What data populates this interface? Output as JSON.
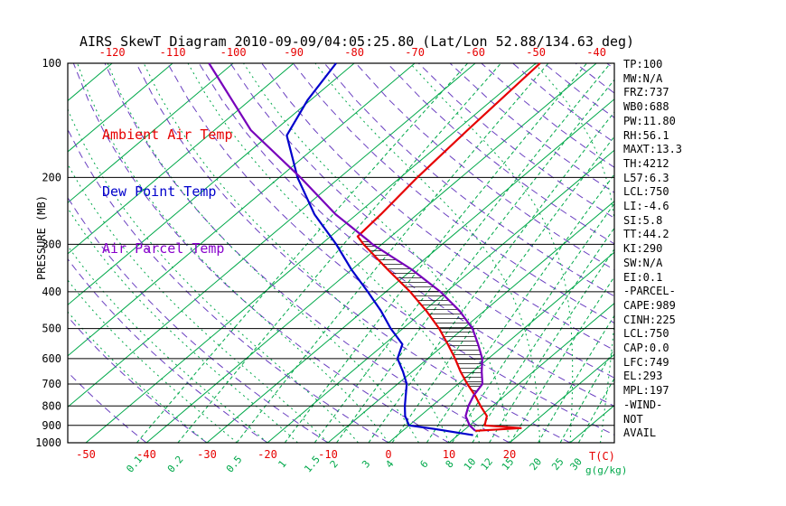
{
  "title": "AIRS SkewT Diagram 2010-09-09/04:05:25.80 (Lat/Lon 52.88/134.63 deg)",
  "legend": {
    "items": [
      {
        "label": "Ambient Air Temp",
        "color": "#e60000"
      },
      {
        "label": "Dew Point Temp",
        "color": "#0000cc"
      },
      {
        "label": "Air Parcel Temp",
        "color": "#8800cc"
      }
    ]
  },
  "stats_panel": {
    "lines": [
      "TP:100",
      "MW:N/A",
      "FRZ:737",
      "WB0:688",
      "PW:11.80",
      "RH:56.1",
      "MAXT:13.3",
      "TH:4212",
      "L57:6.3",
      "LCL:750",
      "LI:-4.6",
      "SI:5.8",
      "TT:44.2",
      "KI:290",
      "SW:N/A",
      "EI:0.1",
      "-PARCEL-",
      "CAPE:989",
      "CINH:225",
      "LCL:750",
      "CAP:0.0",
      "LFC:749",
      "EL:293",
      "MPL:197",
      "-WIND-",
      "NOT",
      "AVAIL"
    ]
  },
  "axes": {
    "pressure_label": "PRESSURE (MB)",
    "temp_unit_label": "T(C)",
    "mixing_unit_label": "g(g/kg)"
  },
  "chart_data": {
    "type": "line",
    "title": "AIRS SkewT Diagram 2010-09-09/04:05:25.80 (Lat/Lon 52.88/134.63 deg)",
    "projection": "skew-t log-p",
    "y_axis": {
      "label": "PRESSURE (MB)",
      "scale": "log",
      "range": [
        100,
        1000
      ],
      "ticks": [
        100,
        200,
        300,
        400,
        500,
        600,
        700,
        800,
        900,
        1000
      ]
    },
    "x_axis": {
      "label": "T(C)",
      "top_ticks": [
        -120,
        -110,
        -100,
        -90,
        -80,
        -70,
        -60,
        -50,
        -40
      ],
      "bottom_ticks": [
        -50,
        -40,
        -30,
        -20,
        -10,
        0,
        10,
        20
      ]
    },
    "background": {
      "isotherms": {
        "min": -120,
        "max": 40,
        "step": 10,
        "color": "#00a84a"
      },
      "dry_adiabats": {
        "min": -40,
        "max": 180,
        "step": 10,
        "color": "#6a3fc0"
      },
      "moist_adiabats": {
        "min": -30,
        "max": 40,
        "step": 5,
        "color": "#00a84a"
      },
      "mixing_ratios": {
        "values": [
          0.1,
          0.2,
          0.5,
          1,
          1.5,
          2,
          3,
          4,
          6,
          8,
          10,
          12,
          15,
          20,
          25,
          30
        ],
        "color": "#00a84a",
        "unit": "g(g/kg)"
      }
    },
    "series": [
      {
        "name": "Ambient Air Temp",
        "color": "#e60000",
        "points": [
          [
            930,
            12
          ],
          [
            915,
            19
          ],
          [
            900,
            12.5
          ],
          [
            850,
            11
          ],
          [
            800,
            8
          ],
          [
            750,
            5
          ],
          [
            700,
            1.5
          ],
          [
            650,
            -2
          ],
          [
            600,
            -5.5
          ],
          [
            550,
            -9.5
          ],
          [
            500,
            -14
          ],
          [
            450,
            -19.5
          ],
          [
            400,
            -26
          ],
          [
            350,
            -34
          ],
          [
            300,
            -43
          ],
          [
            286,
            -45.5
          ],
          [
            250,
            -46
          ],
          [
            200,
            -47.2
          ],
          [
            150,
            -48.2
          ],
          [
            100,
            -49.3
          ]
        ]
      },
      {
        "name": "Dew Point Temp",
        "color": "#0000cc",
        "points": [
          [
            955,
            12.5
          ],
          [
            920,
            5
          ],
          [
            900,
            0
          ],
          [
            850,
            -2.5
          ],
          [
            800,
            -4.5
          ],
          [
            700,
            -8.5
          ],
          [
            650,
            -11.5
          ],
          [
            600,
            -15
          ],
          [
            550,
            -17
          ],
          [
            500,
            -22
          ],
          [
            450,
            -27
          ],
          [
            400,
            -33
          ],
          [
            350,
            -40
          ],
          [
            300,
            -47.5
          ],
          [
            250,
            -57
          ],
          [
            200,
            -67
          ],
          [
            155,
            -77
          ],
          [
            125,
            -80.5
          ],
          [
            100,
            -83
          ]
        ]
      },
      {
        "name": "Air Parcel Temp",
        "color": "#7700bb",
        "points": [
          [
            930,
            12
          ],
          [
            900,
            10
          ],
          [
            850,
            7.5
          ],
          [
            800,
            6
          ],
          [
            750,
            4.8
          ],
          [
            700,
            4
          ],
          [
            650,
            1.5
          ],
          [
            600,
            -1
          ],
          [
            550,
            -4.5
          ],
          [
            500,
            -8.5
          ],
          [
            450,
            -14
          ],
          [
            400,
            -21
          ],
          [
            350,
            -30
          ],
          [
            300,
            -41.5
          ],
          [
            293,
            -43
          ],
          [
            250,
            -53.5
          ],
          [
            200,
            -66.5
          ],
          [
            150,
            -84
          ],
          [
            100,
            -104
          ]
        ]
      }
    ],
    "cape_area": {
      "between": [
        "Air Parcel Temp",
        "Ambient Air Temp"
      ],
      "pressure_from": 749,
      "pressure_to": 293,
      "fill": "hatch"
    }
  }
}
